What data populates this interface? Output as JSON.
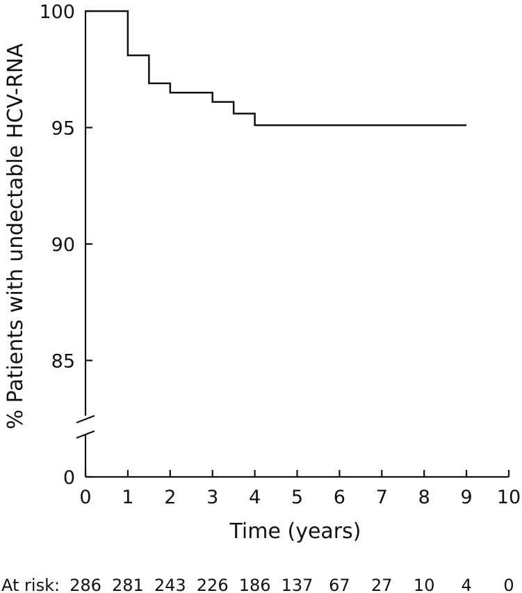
{
  "chart_data": {
    "type": "line",
    "subtype": "kaplan-meier-step",
    "xlabel": "Time (years)",
    "ylabel": "% Patients with undectable HCV-RNA",
    "xlim": [
      0,
      10
    ],
    "ylim": [
      0,
      100
    ],
    "y_axis_break": true,
    "x_ticks": [
      "0",
      "1",
      "2",
      "3",
      "4",
      "5",
      "6",
      "7",
      "8",
      "9",
      "10"
    ],
    "y_ticks": [
      "100",
      "95",
      "90",
      "85",
      "0"
    ],
    "series": [
      {
        "x": [
          0,
          1,
          1.5,
          2,
          3,
          3.5,
          4,
          9
        ],
        "y": [
          100,
          98.1,
          96.9,
          96.5,
          96.1,
          95.6,
          95.1,
          95.1
        ]
      }
    ],
    "at_risk": {
      "label": "At risk:",
      "values": [
        "286",
        "281",
        "243",
        "226",
        "186",
        "137",
        "67",
        "27",
        "10",
        "4",
        "0"
      ]
    },
    "grid": false
  }
}
